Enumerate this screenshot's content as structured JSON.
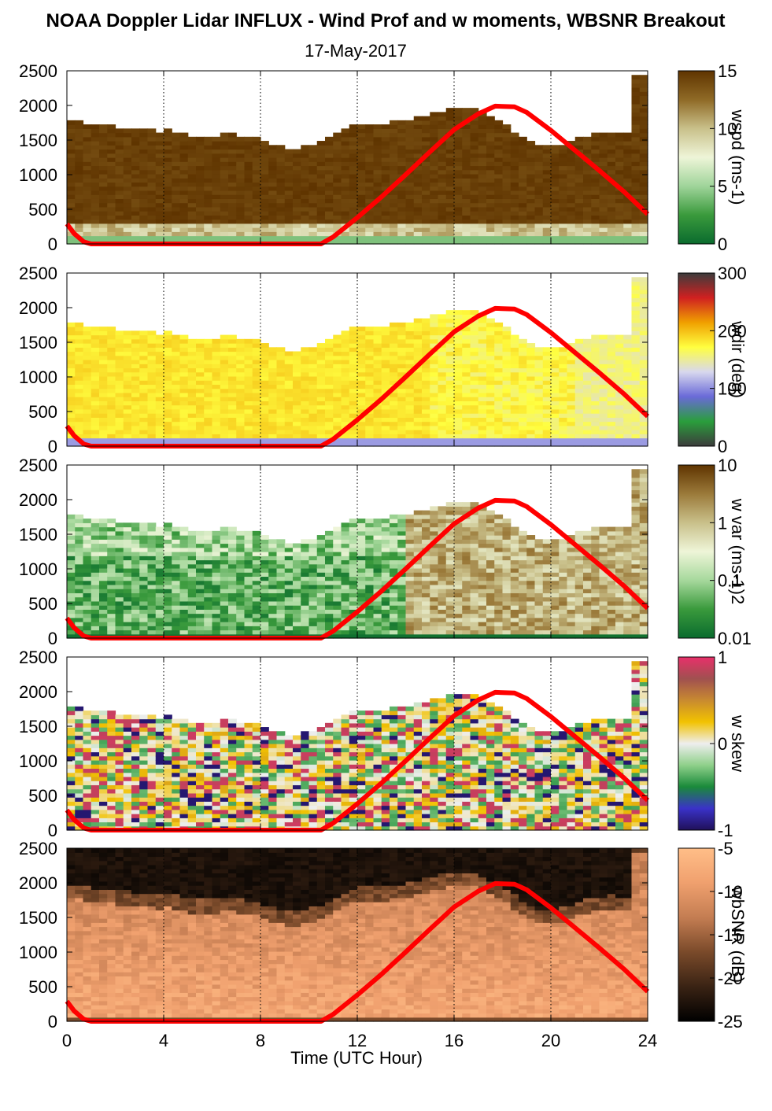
{
  "title": "NOAA Doppler Lidar INFLUX - Wind Prof and w moments, WBSNR Breakout",
  "subtitle": "17-May-2017",
  "xlabel": "Time (UTC Hour)",
  "chart_data": [
    {
      "type": "heatmap",
      "colorbar_label": "wspd (ms-1)",
      "colorbar_ticks": [
        "0",
        "5",
        "10",
        "15"
      ],
      "colormap": [
        "#0a6b2e",
        "#3a9a3c",
        "#9fd49a",
        "#eef5d8",
        "#c9c08a",
        "#8f6a26",
        "#5f3400"
      ],
      "x": {
        "range": [
          0,
          24
        ],
        "ticks": [
          "0",
          "4",
          "8",
          "12",
          "16",
          "20",
          "24"
        ],
        "gridlines": [
          4,
          8,
          12,
          16,
          20
        ]
      },
      "y": {
        "range": [
          0,
          2500
        ],
        "ticks": [
          "0",
          "500",
          "1000",
          "1500",
          "2000",
          "2500"
        ]
      }
    },
    {
      "type": "heatmap",
      "colorbar_label": "wdir (deg)",
      "colorbar_ticks": [
        "0",
        "100",
        "200",
        "300"
      ],
      "colormap": [
        "#3c3c3c",
        "#2a9e3c",
        "#6a6ad8",
        "#d8d8ee",
        "#ffff40",
        "#f0a000",
        "#d02020",
        "#3c3c3c"
      ],
      "x": {
        "range": [
          0,
          24
        ],
        "ticks": [
          "0",
          "4",
          "8",
          "12",
          "16",
          "20",
          "24"
        ],
        "gridlines": [
          4,
          8,
          12,
          16,
          20
        ]
      },
      "y": {
        "range": [
          0,
          2500
        ],
        "ticks": [
          "0",
          "500",
          "1000",
          "1500",
          "2000",
          "2500"
        ]
      }
    },
    {
      "type": "heatmap",
      "colorbar_label": "w var (ms-1)2",
      "colorbar_ticks": [
        "0.01",
        "0.1",
        "1",
        "10"
      ],
      "colormap": [
        "#0a6b2e",
        "#3a9a3c",
        "#a6d89c",
        "#eef5d8",
        "#c9c08a",
        "#9b7a3a",
        "#5f3400"
      ],
      "x": {
        "range": [
          0,
          24
        ],
        "ticks": [
          "0",
          "4",
          "8",
          "12",
          "16",
          "20",
          "24"
        ],
        "gridlines": [
          4,
          8,
          12,
          16,
          20
        ]
      },
      "y": {
        "range": [
          0,
          2500
        ],
        "ticks": [
          "0",
          "500",
          "1000",
          "1500",
          "2000",
          "2500"
        ]
      }
    },
    {
      "type": "heatmap",
      "colorbar_label": "w skew",
      "colorbar_ticks": [
        "-1",
        "0",
        "1"
      ],
      "colormap": [
        "#20105a",
        "#3a32c8",
        "#1a8a3a",
        "#8fd08a",
        "#eeeeee",
        "#f2c200",
        "#c88a30",
        "#a05050",
        "#e8306a"
      ],
      "x": {
        "range": [
          0,
          24
        ],
        "ticks": [
          "0",
          "4",
          "8",
          "12",
          "16",
          "20",
          "24"
        ],
        "gridlines": [
          4,
          8,
          12,
          16,
          20
        ]
      },
      "y": {
        "range": [
          0,
          2500
        ],
        "ticks": [
          "0",
          "500",
          "1000",
          "1500",
          "2000",
          "2500"
        ]
      }
    },
    {
      "type": "heatmap",
      "colorbar_label": "wbSNR (dB)",
      "colorbar_ticks": [
        "-25",
        "-20",
        "-15",
        "-10",
        "-5"
      ],
      "colormap": [
        "#000000",
        "#3a2314",
        "#7a4a2a",
        "#c47d52",
        "#f0a06e",
        "#ffbe88"
      ],
      "x": {
        "range": [
          0,
          24
        ],
        "ticks": [
          "0",
          "4",
          "8",
          "12",
          "16",
          "20",
          "24"
        ],
        "gridlines": [
          4,
          8,
          12,
          16,
          20
        ]
      },
      "y": {
        "range": [
          0,
          2500
        ],
        "ticks": [
          "0",
          "500",
          "1000",
          "1500",
          "2000",
          "2500"
        ]
      }
    }
  ],
  "overlay_curve": {
    "color": "#ff0000",
    "description": "solar elevation proxy",
    "x": [
      0,
      0.3,
      0.7,
      1,
      2,
      4,
      6,
      8,
      10,
      10.5,
      11,
      12,
      13,
      14,
      15,
      16,
      17,
      17.7,
      18.5,
      19,
      20,
      21,
      22,
      23,
      24
    ],
    "y": [
      290,
      150,
      30,
      0,
      0,
      0,
      0,
      0,
      0,
      0,
      100,
      380,
      680,
      1000,
      1330,
      1650,
      1880,
      1990,
      1980,
      1900,
      1640,
      1350,
      1060,
      760,
      430
    ]
  }
}
